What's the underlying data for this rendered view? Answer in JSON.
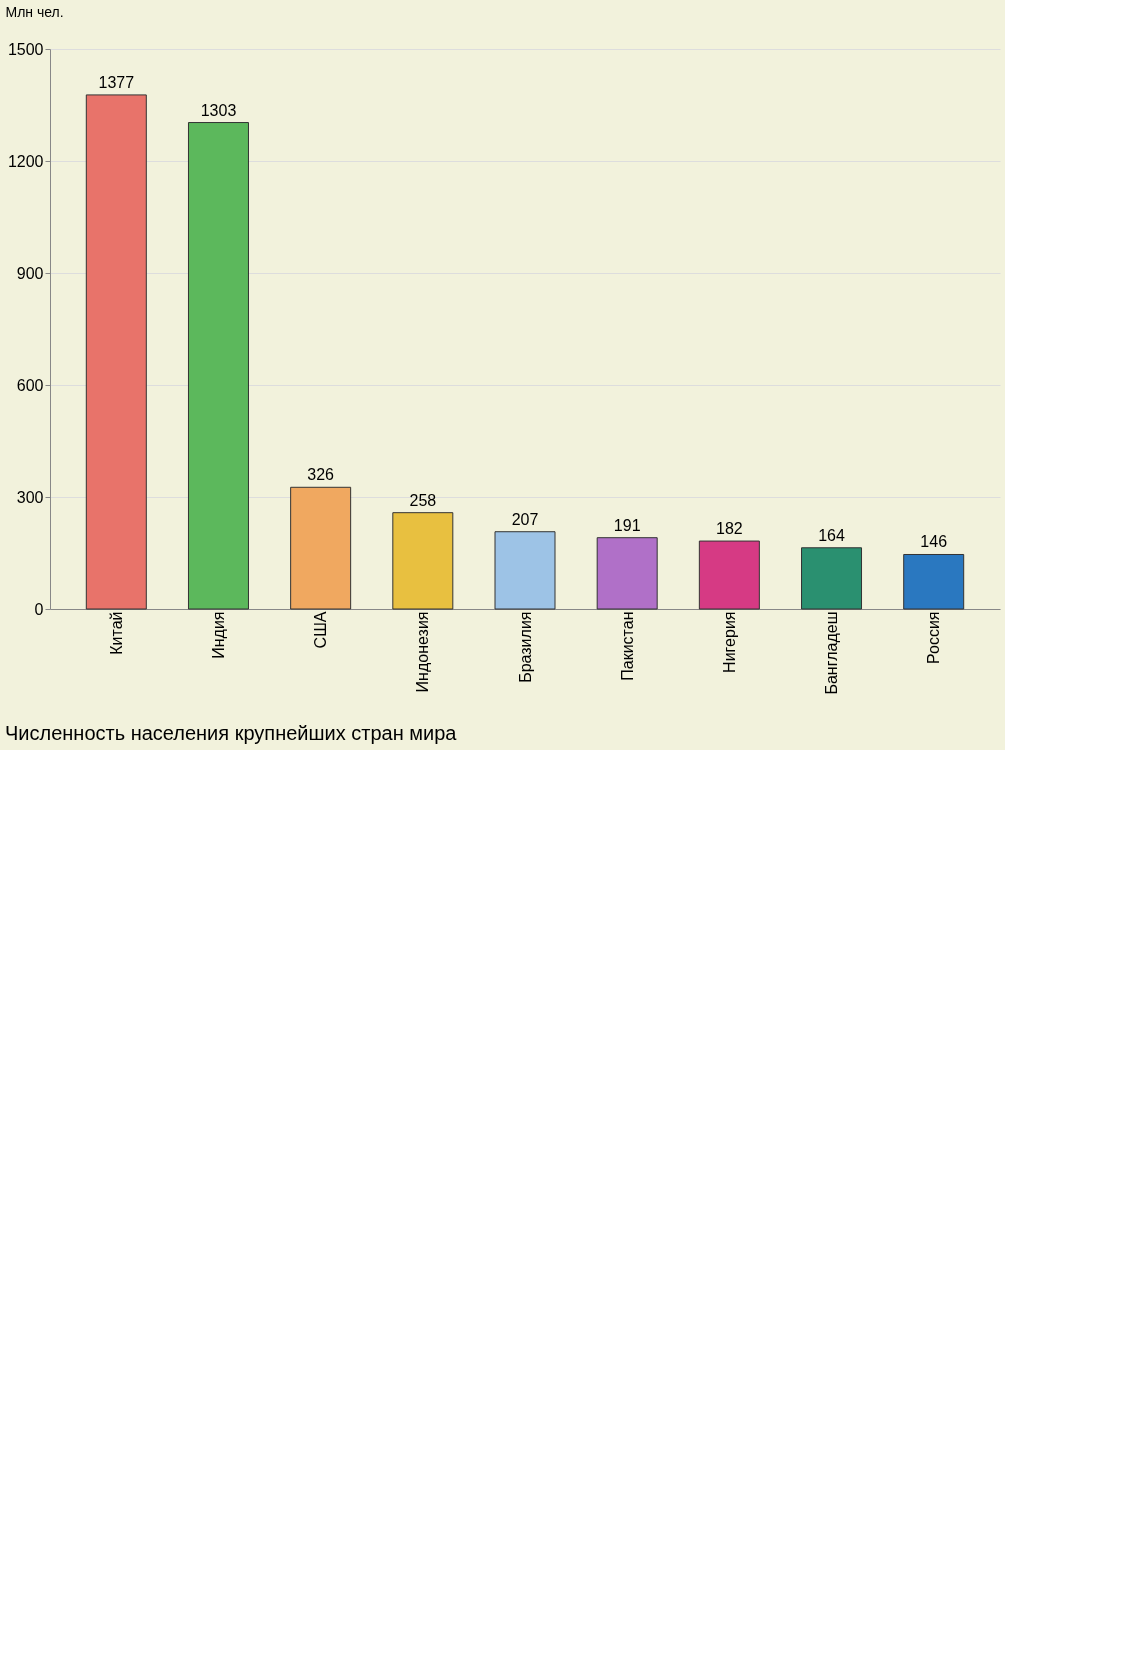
{
  "chart_data": {
    "type": "bar",
    "title": "Численность населения крупнейших стран мира",
    "ylabel": "Млн чел.",
    "categories": [
      "Китай",
      "Индия",
      "США",
      "Индонезия",
      "Бразилия",
      "Пакистан",
      "Нигерия",
      "Бангладеш",
      "Россия"
    ],
    "values": [
      1377,
      1303,
      326,
      258,
      207,
      191,
      182,
      164,
      146
    ],
    "colors": [
      "#e8736a",
      "#5cb85c",
      "#f0a860",
      "#e8c040",
      "#9dc3e6",
      "#b070c8",
      "#d63a84",
      "#2a9070",
      "#2a78c0"
    ],
    "ylim": [
      0,
      1500
    ],
    "yticks": [
      0,
      300,
      600,
      900,
      1200,
      1500
    ],
    "grid": "y",
    "data_labels": true
  }
}
